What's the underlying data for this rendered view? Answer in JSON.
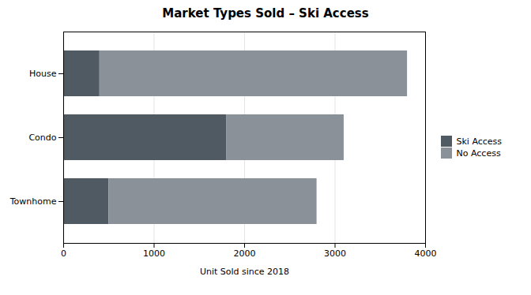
{
  "chart_data": {
    "type": "bar",
    "orientation": "horizontal",
    "stacked": true,
    "title": "Market Types Sold – Ski Access",
    "xlabel": "Unit Sold since 2018",
    "categories": [
      "House",
      "Condo",
      "Townhome"
    ],
    "series": [
      {
        "name": "Ski Access",
        "color": "#505a62",
        "values": [
          400,
          1800,
          500
        ]
      },
      {
        "name": "No Access",
        "color": "#8a9199",
        "values": [
          3400,
          1300,
          2300
        ]
      }
    ],
    "xlim": [
      0,
      4000
    ],
    "xticks": [
      0,
      1000,
      2000,
      3000,
      4000
    ],
    "grid": true,
    "legend": "right"
  }
}
